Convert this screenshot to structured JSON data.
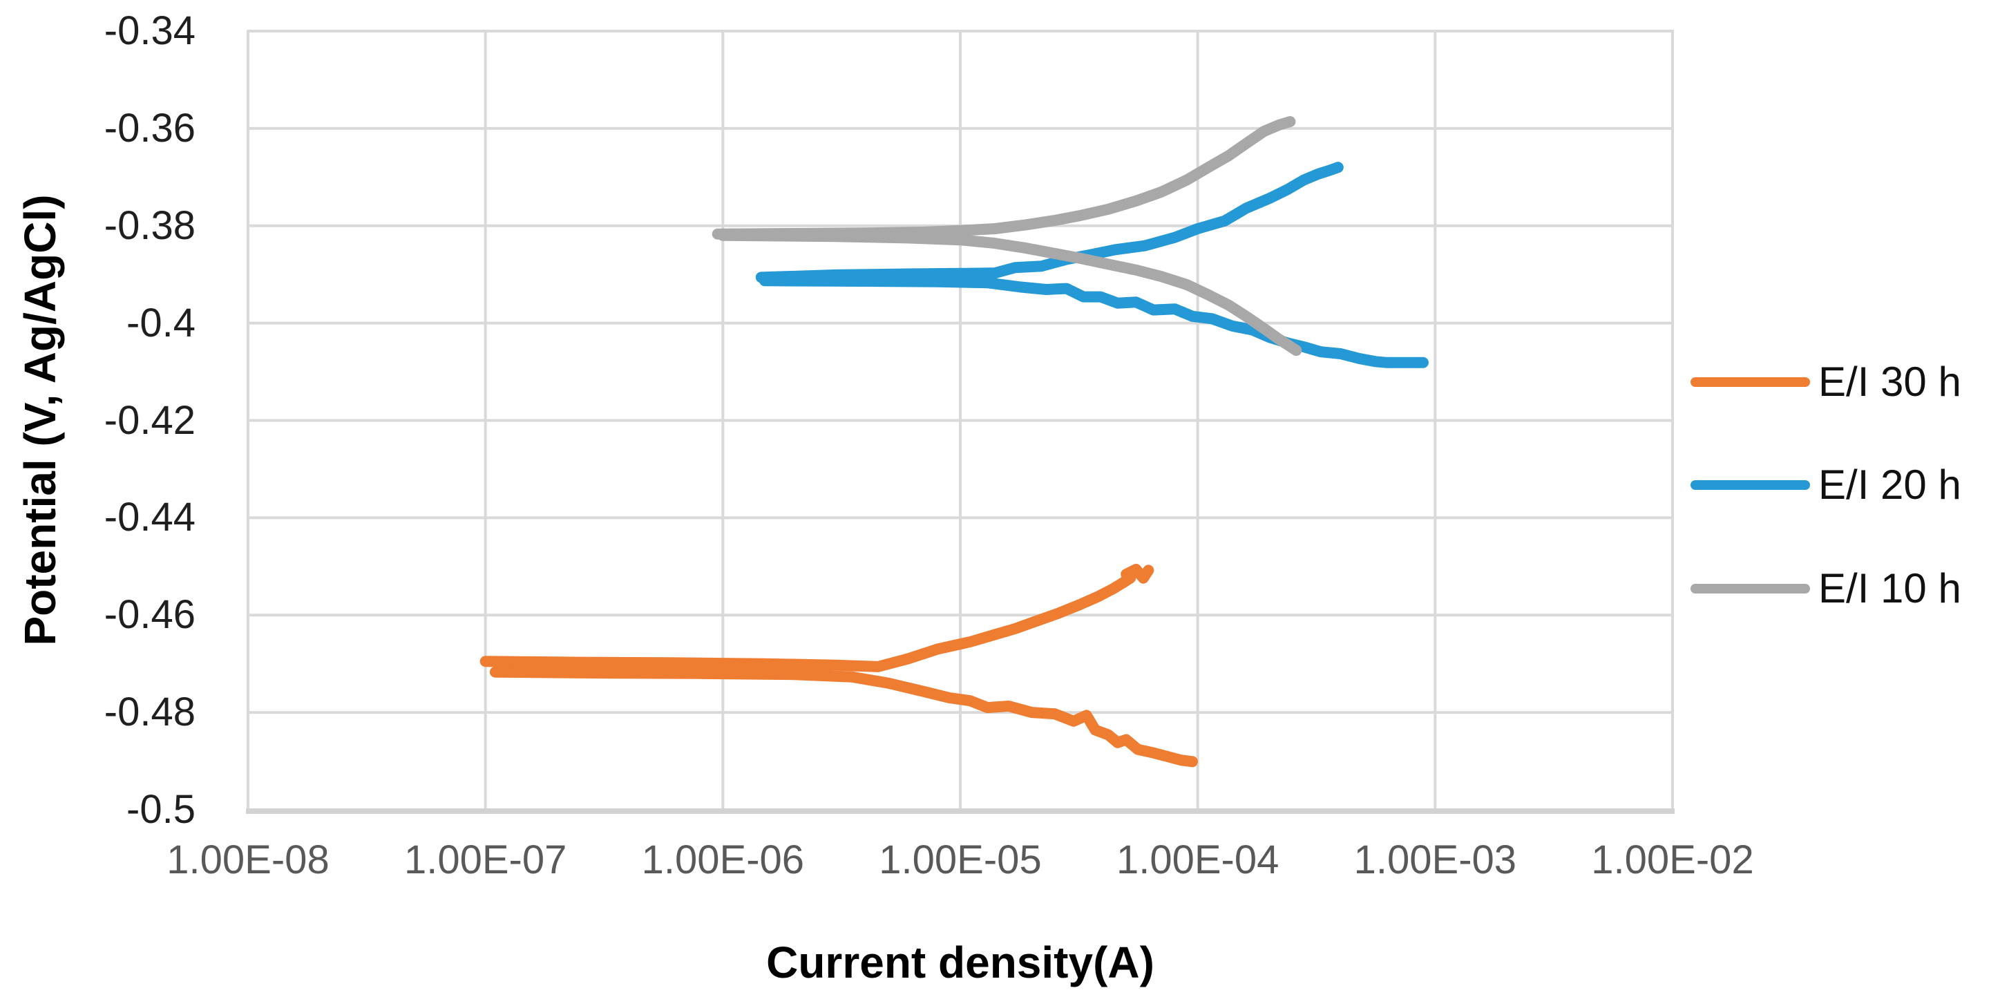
{
  "chart_data": {
    "type": "line",
    "xlabel": "Current density(A)",
    "ylabel": "Potential (V, Ag/AgCl)",
    "x_scale": "log10",
    "xlim": [
      1e-08,
      0.01
    ],
    "ylim": [
      -0.5,
      -0.34
    ],
    "grid": true,
    "legend_position": "right",
    "x_tick_labels": [
      "1.00E-08",
      "1.00E-07",
      "1.00E-06",
      "1.00E-05",
      "1.00E-04",
      "1.00E-03",
      "1.00E-02"
    ],
    "x_tick_values": [
      1e-08,
      1e-07,
      1e-06,
      1e-05,
      0.0001,
      0.001,
      0.01
    ],
    "y_tick_labels": [
      "-0.34",
      "-0.36",
      "-0.38",
      "-0.4",
      "-0.42",
      "-0.44",
      "-0.46",
      "-0.48",
      "-0.5"
    ],
    "y_tick_values": [
      -0.34,
      -0.36,
      -0.38,
      -0.4,
      -0.42,
      -0.44,
      -0.46,
      -0.48,
      -0.5
    ],
    "series": [
      {
        "name": "E/I 30 h",
        "color": "#EE7D31",
        "corrosion_potential_v": -0.47,
        "branches": {
          "anodic": [
            [
              1e-07,
              -0.4695
            ],
            [
              2.5e-07,
              -0.4697
            ],
            [
              6e-07,
              -0.4698
            ],
            [
              1.5e-06,
              -0.47
            ],
            [
              3e-06,
              -0.4703
            ],
            [
              4.5e-06,
              -0.4706
            ],
            [
              6e-06,
              -0.469
            ],
            [
              8e-06,
              -0.467
            ],
            [
              1.1e-05,
              -0.4655
            ],
            [
              1.4e-05,
              -0.464
            ],
            [
              1.7e-05,
              -0.4628
            ],
            [
              2.1e-05,
              -0.4612
            ],
            [
              2.6e-05,
              -0.4596
            ],
            [
              3.2e-05,
              -0.4578
            ],
            [
              3.8e-05,
              -0.4562
            ],
            [
              4.4e-05,
              -0.4546
            ],
            [
              4.9e-05,
              -0.4532
            ],
            [
              5.2e-05,
              -0.4524
            ],
            [
              5e-05,
              -0.4516
            ],
            [
              5.5e-05,
              -0.4506
            ],
            [
              5.9e-05,
              -0.4524
            ],
            [
              6.2e-05,
              -0.4508
            ]
          ],
          "cathodic": [
            [
              1.1e-07,
              -0.4717
            ],
            [
              3e-07,
              -0.4719
            ],
            [
              8e-07,
              -0.472
            ],
            [
              2e-06,
              -0.4722
            ],
            [
              3.5e-06,
              -0.4727
            ],
            [
              5e-06,
              -0.474
            ],
            [
              7e-06,
              -0.4757
            ],
            [
              9e-06,
              -0.477
            ],
            [
              1.1e-05,
              -0.4776
            ],
            [
              1.3e-05,
              -0.479
            ],
            [
              1.6e-05,
              -0.4787
            ],
            [
              2e-05,
              -0.48
            ],
            [
              2.5e-05,
              -0.4803
            ],
            [
              3e-05,
              -0.4818
            ],
            [
              3.4e-05,
              -0.4806
            ],
            [
              3.7e-05,
              -0.4836
            ],
            [
              4.2e-05,
              -0.4846
            ],
            [
              4.6e-05,
              -0.4862
            ],
            [
              5e-05,
              -0.4856
            ],
            [
              5.6e-05,
              -0.4876
            ],
            [
              6.5e-05,
              -0.4883
            ],
            [
              7.5e-05,
              -0.4891
            ],
            [
              8.5e-05,
              -0.4898
            ],
            [
              9.5e-05,
              -0.4901
            ]
          ]
        }
      },
      {
        "name": "E/I 20 h",
        "color": "#2499D6",
        "corrosion_potential_v": -0.39,
        "branches": {
          "anodic": [
            [
              1.45e-06,
              -0.3906
            ],
            [
              3e-06,
              -0.3901
            ],
            [
              6e-06,
              -0.3899
            ],
            [
              1e-05,
              -0.3898
            ],
            [
              1.4e-05,
              -0.3897
            ],
            [
              1.7e-05,
              -0.3886
            ],
            [
              2.2e-05,
              -0.3883
            ],
            [
              2.8e-05,
              -0.3869
            ],
            [
              3.5e-05,
              -0.386
            ],
            [
              4.5e-05,
              -0.3849
            ],
            [
              6e-05,
              -0.3841
            ],
            [
              8e-05,
              -0.3824
            ],
            [
              0.0001,
              -0.3806
            ],
            [
              0.00013,
              -0.379
            ],
            [
              0.00016,
              -0.3764
            ],
            [
              0.0002,
              -0.3744
            ],
            [
              0.00024,
              -0.3725
            ],
            [
              0.00028,
              -0.3706
            ],
            [
              0.00032,
              -0.3694
            ],
            [
              0.00036,
              -0.3686
            ],
            [
              0.00039,
              -0.368
            ]
          ],
          "cathodic": [
            [
              1.5e-06,
              -0.3913
            ],
            [
              4e-06,
              -0.3914
            ],
            [
              8e-06,
              -0.3915
            ],
            [
              1.3e-05,
              -0.3917
            ],
            [
              1.8e-05,
              -0.3926
            ],
            [
              2.3e-05,
              -0.3931
            ],
            [
              2.8e-05,
              -0.3929
            ],
            [
              3.3e-05,
              -0.3946
            ],
            [
              3.9e-05,
              -0.3946
            ],
            [
              4.6e-05,
              -0.3959
            ],
            [
              5.5e-05,
              -0.3957
            ],
            [
              6.5e-05,
              -0.3973
            ],
            [
              8e-05,
              -0.3971
            ],
            [
              9.5e-05,
              -0.3986
            ],
            [
              0.000115,
              -0.3991
            ],
            [
              0.00014,
              -0.4006
            ],
            [
              0.00017,
              -0.4014
            ],
            [
              0.0002,
              -0.4029
            ],
            [
              0.00024,
              -0.4041
            ],
            [
              0.00028,
              -0.4049
            ],
            [
              0.00033,
              -0.4059
            ],
            [
              0.0004,
              -0.4063
            ],
            [
              0.00048,
              -0.4073
            ],
            [
              0.00056,
              -0.4079
            ],
            [
              0.00062,
              -0.4081
            ],
            [
              0.00089,
              -0.4081
            ]
          ]
        }
      },
      {
        "name": "E/I 10 h",
        "color": "#A8A8A8",
        "corrosion_potential_v": -0.381,
        "branches": {
          "anodic": [
            [
              9.5e-07,
              -0.3817
            ],
            [
              2e-06,
              -0.3816
            ],
            [
              4e-06,
              -0.3815
            ],
            [
              7e-06,
              -0.3813
            ],
            [
              1e-05,
              -0.381
            ],
            [
              1.4e-05,
              -0.3806
            ],
            [
              1.9e-05,
              -0.3798
            ],
            [
              2.5e-05,
              -0.3789
            ],
            [
              3.2e-05,
              -0.3779
            ],
            [
              4.2e-05,
              -0.3766
            ],
            [
              5.5e-05,
              -0.3749
            ],
            [
              7e-05,
              -0.3731
            ],
            [
              9e-05,
              -0.3706
            ],
            [
              0.00011,
              -0.3681
            ],
            [
              0.000135,
              -0.3656
            ],
            [
              0.00016,
              -0.3631
            ],
            [
              0.00019,
              -0.3606
            ],
            [
              0.00022,
              -0.3593
            ],
            [
              0.000245,
              -0.3586
            ]
          ],
          "cathodic": [
            [
              1e-06,
              -0.382
            ],
            [
              3e-06,
              -0.3822
            ],
            [
              6e-06,
              -0.3825
            ],
            [
              1e-05,
              -0.3829
            ],
            [
              1.4e-05,
              -0.3836
            ],
            [
              1.9e-05,
              -0.3846
            ],
            [
              2.5e-05,
              -0.3857
            ],
            [
              3.2e-05,
              -0.3867
            ],
            [
              4.2e-05,
              -0.3879
            ],
            [
              5.5e-05,
              -0.3891
            ],
            [
              7e-05,
              -0.3904
            ],
            [
              9e-05,
              -0.3921
            ],
            [
              0.00011,
              -0.3941
            ],
            [
              0.000135,
              -0.3963
            ],
            [
              0.00016,
              -0.3986
            ],
            [
              0.00019,
              -0.4011
            ],
            [
              0.00022,
              -0.4033
            ],
            [
              0.00026,
              -0.4056
            ]
          ]
        }
      }
    ]
  },
  "colors": {
    "background": "#FFFFFF",
    "gridline": "#D9D9D9",
    "plot_border": "#D9D9D9",
    "axis_line": "#D2D2D2",
    "x_tick_text": "#595959",
    "y_tick_text": "#1F1F1F",
    "axis_title_text": "#000000",
    "legend_text": "#111111"
  }
}
